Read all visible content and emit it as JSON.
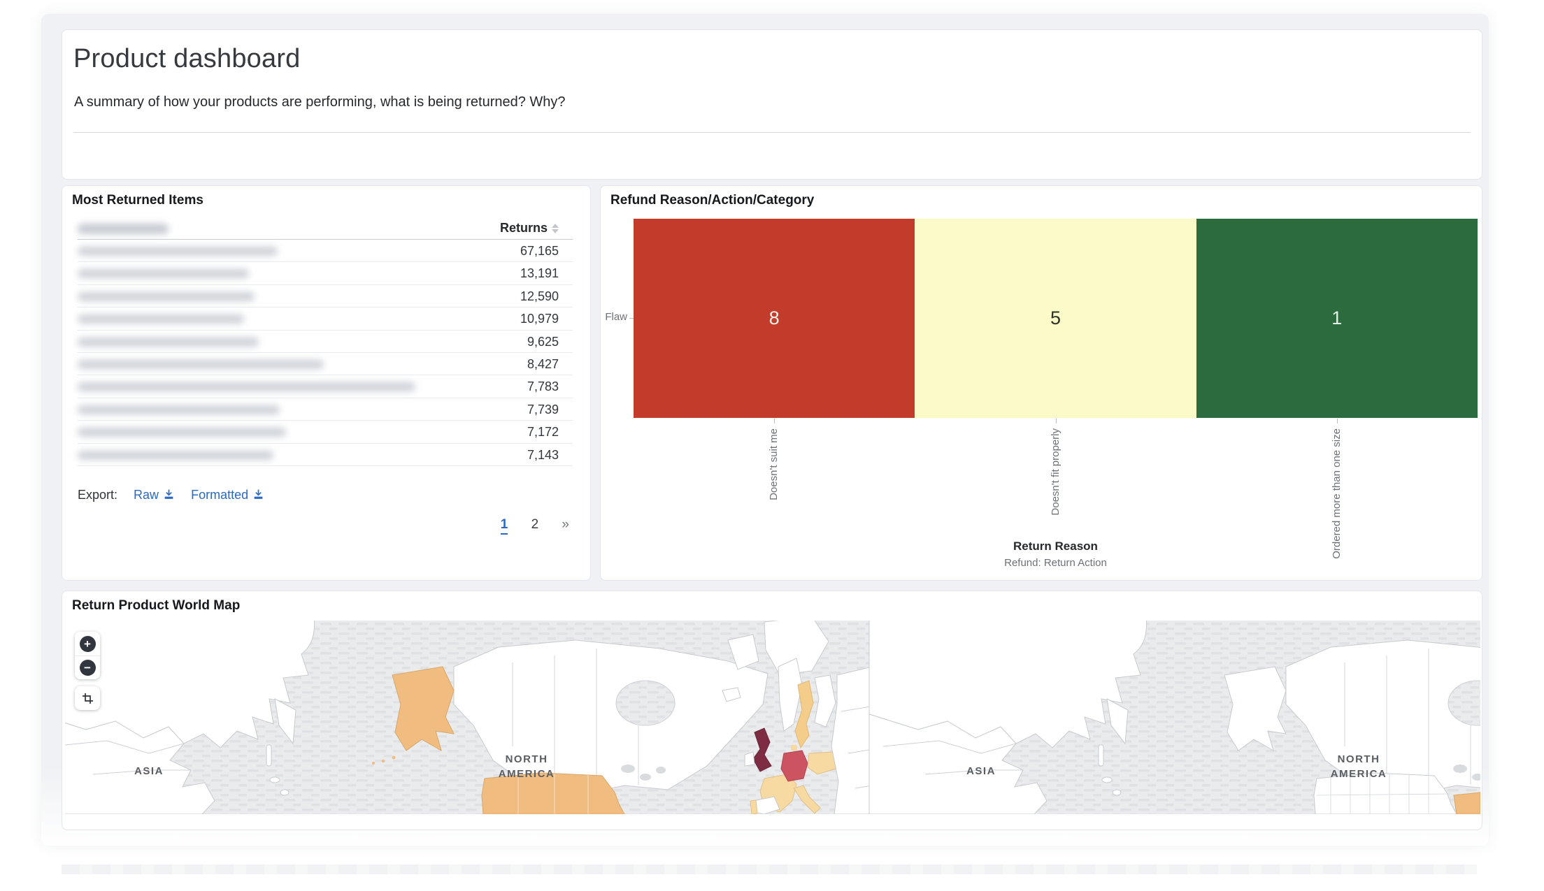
{
  "header": {
    "title": "Product dashboard",
    "subtitle": "A summary of how your products are performing, what is being returned? Why?"
  },
  "most_returned_panel": {
    "title": "Most Returned Items",
    "returns_header": "Returns",
    "product_name_header_redacted": true,
    "header_blur_width": 130,
    "rows": [
      {
        "returns": "67,165",
        "blur_width": 286
      },
      {
        "returns": "13,191",
        "blur_width": 245
      },
      {
        "returns": "12,590",
        "blur_width": 253
      },
      {
        "returns": "10,979",
        "blur_width": 238
      },
      {
        "returns": "9,625",
        "blur_width": 259
      },
      {
        "returns": "8,427",
        "blur_width": 352
      },
      {
        "returns": "7,783",
        "blur_width": 483
      },
      {
        "returns": "7,739",
        "blur_width": 289
      },
      {
        "returns": "7,172",
        "blur_width": 298
      },
      {
        "returns": "7,143",
        "blur_width": 280
      }
    ],
    "export_label": "Export:",
    "export_links": [
      {
        "label": "Raw"
      },
      {
        "label": "Formatted"
      }
    ],
    "pagination": {
      "pages": [
        "1",
        "2"
      ],
      "active": "1",
      "next": "»"
    }
  },
  "refund_panel": {
    "title": "Refund Reason/Action/Category",
    "chart_data": {
      "type": "heatmap",
      "x_categories": [
        "Doesn't suit me",
        "Doesn't fit properly",
        "Ordered more than one size"
      ],
      "y_categories": [
        "Flaw"
      ],
      "values": [
        [
          8,
          5,
          1
        ]
      ],
      "cell_colors": [
        "#c23b2b",
        "#fafbc9",
        "#2c6b3e"
      ],
      "cell_text_colors": [
        "#f7f3ea",
        "#30322a",
        "#e6ece6"
      ],
      "xlabel": "Return Reason",
      "xlabel_sub": "Refund: Return Action",
      "legend_position": "none",
      "grid": false
    }
  },
  "map_panel": {
    "title": "Return Product World Map",
    "controls": {
      "zoom_in": "+",
      "zoom_out": "−",
      "crop": "crop-region"
    },
    "region_labels": [
      {
        "text": "ASIA"
      },
      {
        "line1": "NORTH",
        "line2": "AMERICA"
      },
      {
        "text": "ASIA"
      },
      {
        "line1": "NORTH",
        "line2": "AMERICA"
      }
    ],
    "colors": {
      "ocean": "#e9ebed",
      "land": "#ffffff",
      "border": "#c8cbce",
      "high": "#f0bc80",
      "pale": "#f7d9a2",
      "sweden": "#f5cd8a",
      "germany": "#cc5360",
      "uk": "#7e2c42"
    },
    "highlighted_regions": [
      {
        "name": "United States",
        "color_key": "high"
      },
      {
        "name": "United Kingdom",
        "color_key": "uk"
      },
      {
        "name": "Germany",
        "color_key": "germany"
      },
      {
        "name": "Sweden",
        "color_key": "sweden"
      },
      {
        "name": "France / Poland / Italy / Portugal",
        "color_key": "pale"
      }
    ]
  }
}
